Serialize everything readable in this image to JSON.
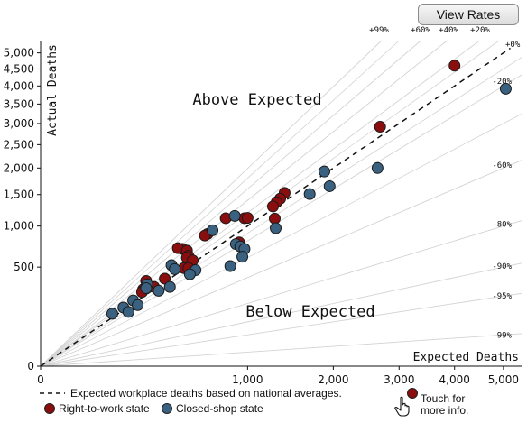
{
  "view_rates_button": "View Rates",
  "colors": {
    "rtw": "#8b0e0e",
    "closed": "#3a6180",
    "reference_line": "#d3d3d3",
    "expected_line": "#111111"
  },
  "chart_data": {
    "type": "scatter",
    "scale": "sqrt",
    "xlabel": "Expected Deaths",
    "ylabel": "Actual Deaths",
    "xlim": [
      0,
      5400
    ],
    "ylim": [
      0,
      5400
    ],
    "x_ticks": [
      {
        "value": 0,
        "label": "0"
      },
      {
        "value": 1000,
        "label": "1,000"
      },
      {
        "value": 2000,
        "label": "2,000"
      },
      {
        "value": 3000,
        "label": "3,000"
      },
      {
        "value": 4000,
        "label": "4,000"
      },
      {
        "value": 5000,
        "label": "5,000"
      }
    ],
    "y_ticks": [
      {
        "value": 0,
        "label": "0"
      },
      {
        "value": 500,
        "label": "500"
      },
      {
        "value": 1000,
        "label": "1,000"
      },
      {
        "value": 1500,
        "label": "1,500"
      },
      {
        "value": 2000,
        "label": "2,000"
      },
      {
        "value": 2500,
        "label": "2,500"
      },
      {
        "value": 3000,
        "label": "3,000"
      },
      {
        "value": 3500,
        "label": "3,500"
      },
      {
        "value": 4000,
        "label": "4,000"
      },
      {
        "value": 4500,
        "label": "4,500"
      },
      {
        "value": 5000,
        "label": "5,000"
      }
    ],
    "reference_lines": [
      {
        "label": "+99%",
        "ratio": 1.99
      },
      {
        "label": "+60%",
        "ratio": 1.6
      },
      {
        "label": "+40%",
        "ratio": 1.4
      },
      {
        "label": "+20%",
        "ratio": 1.2
      },
      {
        "label": "+0%",
        "ratio": 1.0
      },
      {
        "label": "-20%",
        "ratio": 0.8
      },
      {
        "label": "-60%",
        "ratio": 0.4
      },
      {
        "label": "-80%",
        "ratio": 0.2
      },
      {
        "label": "-90%",
        "ratio": 0.1
      },
      {
        "label": "-95%",
        "ratio": 0.05
      },
      {
        "label": "-99%",
        "ratio": 0.01
      }
    ],
    "annotations": {
      "above": "Above Expected",
      "below": "Below Expected"
    },
    "legend": {
      "expected": "Expected workplace deaths based on national averages.",
      "rtw": "Right-to-work state",
      "closed": "Closed-shop state",
      "touch": "Touch for more info."
    },
    "series": [
      {
        "name": "Right-to-work state",
        "key": "rtw",
        "points": [
          {
            "x": 4000,
            "y": 4600
          },
          {
            "x": 2690,
            "y": 2920
          },
          {
            "x": 1390,
            "y": 1530
          },
          {
            "x": 1340,
            "y": 1430
          },
          {
            "x": 1300,
            "y": 1370
          },
          {
            "x": 1260,
            "y": 1300
          },
          {
            "x": 1280,
            "y": 1110
          },
          {
            "x": 970,
            "y": 1115
          },
          {
            "x": 1000,
            "y": 1120
          },
          {
            "x": 800,
            "y": 1115
          },
          {
            "x": 650,
            "y": 890
          },
          {
            "x": 630,
            "y": 870
          },
          {
            "x": 920,
            "y": 780
          },
          {
            "x": 470,
            "y": 700
          },
          {
            "x": 440,
            "y": 710
          },
          {
            "x": 500,
            "y": 680
          },
          {
            "x": 510,
            "y": 620
          },
          {
            "x": 500,
            "y": 600
          },
          {
            "x": 540,
            "y": 570
          },
          {
            "x": 480,
            "y": 490
          },
          {
            "x": 510,
            "y": 490
          },
          {
            "x": 360,
            "y": 390
          },
          {
            "x": 260,
            "y": 370
          },
          {
            "x": 300,
            "y": 320
          },
          {
            "x": 245,
            "y": 300
          },
          {
            "x": 240,
            "y": 280
          }
        ]
      },
      {
        "name": "Closed-shop state",
        "key": "closed",
        "points": [
          {
            "x": 5050,
            "y": 3920
          },
          {
            "x": 2650,
            "y": 2000
          },
          {
            "x": 1880,
            "y": 1930
          },
          {
            "x": 1950,
            "y": 1650
          },
          {
            "x": 1690,
            "y": 1510
          },
          {
            "x": 880,
            "y": 1150
          },
          {
            "x": 1290,
            "y": 970
          },
          {
            "x": 690,
            "y": 940
          },
          {
            "x": 890,
            "y": 760
          },
          {
            "x": 930,
            "y": 730
          },
          {
            "x": 970,
            "y": 700
          },
          {
            "x": 950,
            "y": 610
          },
          {
            "x": 400,
            "y": 520
          },
          {
            "x": 420,
            "y": 480
          },
          {
            "x": 560,
            "y": 470
          },
          {
            "x": 840,
            "y": 510
          },
          {
            "x": 520,
            "y": 430
          },
          {
            "x": 265,
            "y": 340
          },
          {
            "x": 260,
            "y": 310
          },
          {
            "x": 390,
            "y": 320
          },
          {
            "x": 325,
            "y": 290
          },
          {
            "x": 200,
            "y": 220
          },
          {
            "x": 220,
            "y": 190
          },
          {
            "x": 160,
            "y": 175
          },
          {
            "x": 180,
            "y": 150
          },
          {
            "x": 120,
            "y": 140
          }
        ]
      }
    ]
  }
}
